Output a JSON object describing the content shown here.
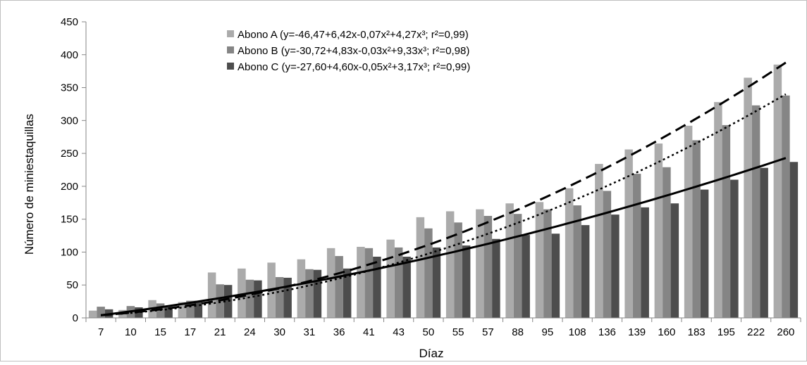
{
  "chart_data": {
    "type": "bar",
    "xlabel": "Díaz",
    "ylabel": "Número de miniestaquillas",
    "ylim": [
      0,
      450
    ],
    "yticks": [
      "0",
      "50",
      "100",
      "150",
      "200",
      "250",
      "300",
      "350",
      "400",
      "450"
    ],
    "categories": [
      "7",
      "10",
      "15",
      "17",
      "21",
      "24",
      "30",
      "31",
      "36",
      "41",
      "43",
      "50",
      "55",
      "57",
      "88",
      "95",
      "108",
      "136",
      "139",
      "160",
      "183",
      "195",
      "222",
      "260"
    ],
    "series": [
      {
        "name": "Abono A (y=-46,47+6,42x-0,07x²+4,27x³; r²=0,99)",
        "color": "#ababab",
        "values": [
          11,
          12,
          27,
          24,
          69,
          75,
          84,
          89,
          106,
          108,
          119,
          153,
          162,
          165,
          174,
          176,
          197,
          234,
          256,
          265,
          292,
          328,
          365,
          385
        ]
      },
      {
        "name": "Abono B (y=-30,72+4,83x-0,03x²+9,33x³; r²=0,98)",
        "color": "#858585",
        "values": [
          17,
          18,
          22,
          26,
          51,
          58,
          62,
          74,
          94,
          106,
          107,
          136,
          145,
          155,
          158,
          165,
          171,
          193,
          219,
          229,
          270,
          293,
          323,
          338
        ]
      },
      {
        "name": "Abono C (y=-27,60+4,60x-0,05x²+3,17x³; r²=0,99)",
        "color": "#4d4d4d",
        "values": [
          13,
          16,
          16,
          26,
          50,
          57,
          61,
          73,
          75,
          93,
          93,
          107,
          110,
          120,
          126,
          128,
          141,
          157,
          168,
          174,
          195,
          210,
          228,
          237
        ]
      }
    ],
    "trendlines": [
      {
        "series": "Abono A",
        "style": "dashed",
        "start": 4,
        "end": 388
      },
      {
        "series": "Abono B",
        "style": "dotted",
        "start": 4,
        "end": 340
      },
      {
        "series": "Abono C",
        "style": "solid",
        "start": 4,
        "end": 243
      }
    ],
    "legend_position": "top-left",
    "grid": false
  }
}
